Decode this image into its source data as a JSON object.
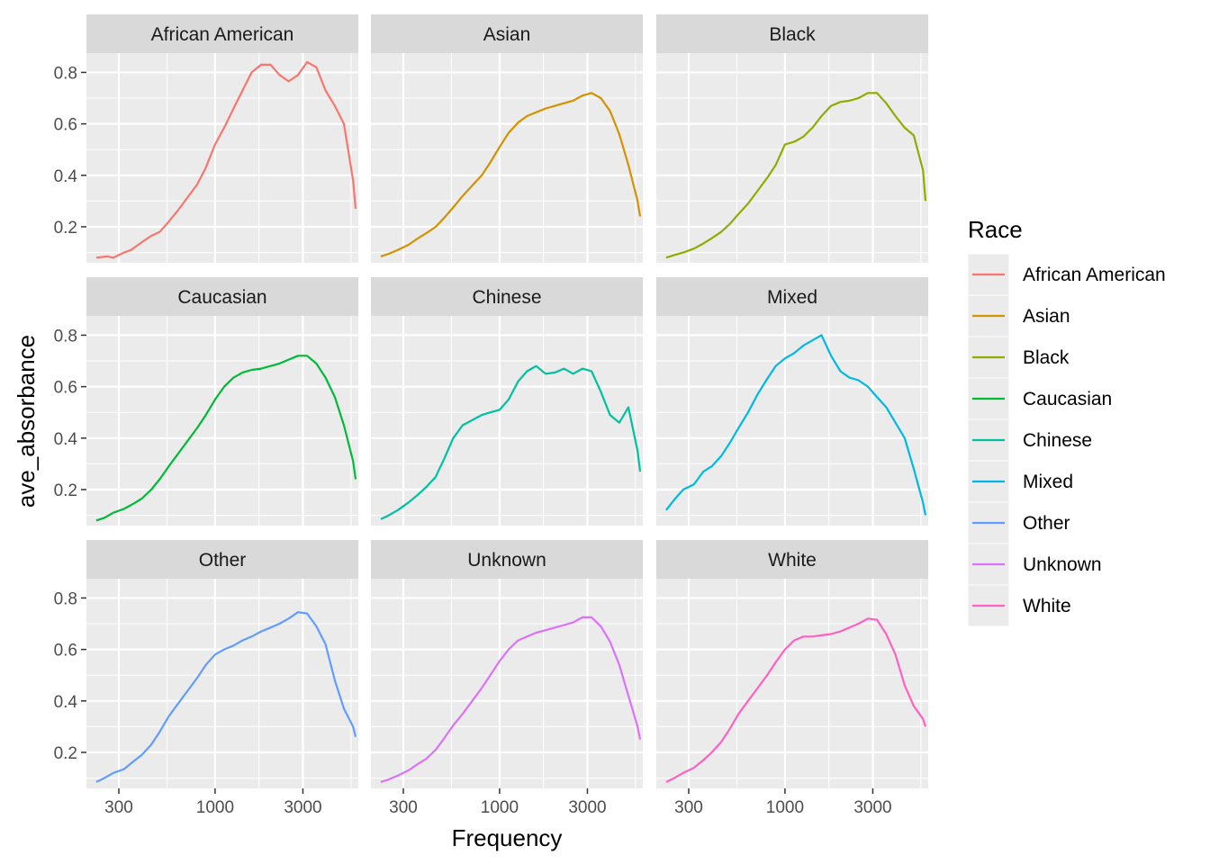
{
  "chart_data": {
    "type": "line",
    "facet_layout": "3x3",
    "xlabel": "Frequency",
    "ylabel": "ave_absorbance",
    "x_scale": "log10",
    "x_ticks": [
      300,
      1000,
      3000
    ],
    "x_tick_labels": [
      "300",
      "1000",
      "3000"
    ],
    "xlim": [
      200,
      6000
    ],
    "y_ticks": [
      0.2,
      0.4,
      0.6,
      0.8
    ],
    "y_tick_labels": [
      "0.2",
      "0.4",
      "0.6",
      "0.8"
    ],
    "ylim": [
      0.06,
      0.875
    ],
    "grid": true,
    "legend_title": "Race",
    "legend_position": "right",
    "facets": [
      {
        "title": "African American",
        "color": "#F8766D",
        "x": [
          226,
          260,
          280,
          320,
          350,
          400,
          450,
          500,
          560,
          630,
          710,
          800,
          890,
          1000,
          1120,
          1260,
          1410,
          1580,
          1780,
          2000,
          2240,
          2510,
          2820,
          3160,
          3550,
          3980,
          4470,
          5010,
          5620,
          5800
        ],
        "y": [
          0.08,
          0.085,
          0.08,
          0.1,
          0.11,
          0.14,
          0.165,
          0.18,
          0.22,
          0.265,
          0.315,
          0.365,
          0.43,
          0.52,
          0.585,
          0.66,
          0.73,
          0.8,
          0.83,
          0.83,
          0.79,
          0.765,
          0.79,
          0.84,
          0.82,
          0.73,
          0.67,
          0.6,
          0.38,
          0.27
        ]
      },
      {
        "title": "Asian",
        "color": "#D39200",
        "x": [
          226,
          250,
          280,
          320,
          360,
          400,
          450,
          500,
          560,
          630,
          710,
          800,
          890,
          1000,
          1120,
          1260,
          1410,
          1580,
          1780,
          2000,
          2240,
          2510,
          2820,
          3160,
          3550,
          3980,
          4470,
          5010,
          5620,
          5800
        ],
        "y": [
          0.085,
          0.095,
          0.11,
          0.13,
          0.155,
          0.175,
          0.2,
          0.235,
          0.275,
          0.32,
          0.36,
          0.4,
          0.45,
          0.51,
          0.565,
          0.605,
          0.63,
          0.645,
          0.66,
          0.67,
          0.68,
          0.69,
          0.71,
          0.72,
          0.7,
          0.65,
          0.56,
          0.44,
          0.3,
          0.24
        ]
      },
      {
        "title": "Black",
        "color": "#93AA00",
        "x": [
          226,
          250,
          280,
          320,
          360,
          400,
          450,
          500,
          560,
          630,
          710,
          800,
          890,
          1000,
          1120,
          1260,
          1410,
          1580,
          1780,
          2000,
          2240,
          2510,
          2820,
          3160,
          3550,
          3980,
          4470,
          5010,
          5620,
          5800
        ],
        "y": [
          0.08,
          0.09,
          0.1,
          0.115,
          0.135,
          0.155,
          0.18,
          0.21,
          0.25,
          0.29,
          0.34,
          0.39,
          0.44,
          0.52,
          0.53,
          0.55,
          0.585,
          0.63,
          0.67,
          0.685,
          0.69,
          0.7,
          0.72,
          0.72,
          0.68,
          0.63,
          0.585,
          0.555,
          0.42,
          0.3
        ]
      },
      {
        "title": "Caucasian",
        "color": "#00BA38",
        "x": [
          226,
          250,
          280,
          320,
          360,
          400,
          450,
          500,
          560,
          630,
          710,
          800,
          890,
          1000,
          1120,
          1260,
          1410,
          1580,
          1780,
          2000,
          2240,
          2510,
          2820,
          3160,
          3550,
          3980,
          4470,
          5010,
          5620,
          5800
        ],
        "y": [
          0.08,
          0.09,
          0.11,
          0.125,
          0.145,
          0.165,
          0.2,
          0.24,
          0.29,
          0.34,
          0.39,
          0.44,
          0.49,
          0.55,
          0.6,
          0.635,
          0.655,
          0.665,
          0.67,
          0.68,
          0.69,
          0.705,
          0.72,
          0.72,
          0.69,
          0.635,
          0.56,
          0.45,
          0.31,
          0.24
        ]
      },
      {
        "title": "Chinese",
        "color": "#00C19F",
        "x": [
          226,
          250,
          280,
          320,
          360,
          400,
          450,
          500,
          560,
          630,
          710,
          800,
          890,
          1000,
          1120,
          1260,
          1410,
          1580,
          1780,
          2000,
          2240,
          2510,
          2820,
          3160,
          3550,
          3980,
          4470,
          5010,
          5620,
          5800
        ],
        "y": [
          0.085,
          0.1,
          0.12,
          0.15,
          0.18,
          0.21,
          0.25,
          0.32,
          0.4,
          0.45,
          0.47,
          0.49,
          0.5,
          0.51,
          0.55,
          0.62,
          0.66,
          0.68,
          0.65,
          0.655,
          0.67,
          0.65,
          0.67,
          0.66,
          0.58,
          0.49,
          0.46,
          0.52,
          0.35,
          0.27
        ]
      },
      {
        "title": "Mixed",
        "color": "#00B9E3",
        "x": [
          226,
          250,
          280,
          320,
          360,
          400,
          450,
          500,
          560,
          630,
          710,
          800,
          890,
          1000,
          1120,
          1260,
          1410,
          1580,
          1780,
          2000,
          2240,
          2510,
          2820,
          3160,
          3550,
          3980,
          4470,
          5010,
          5620,
          5800
        ],
        "y": [
          0.12,
          0.16,
          0.2,
          0.22,
          0.27,
          0.29,
          0.33,
          0.38,
          0.44,
          0.5,
          0.57,
          0.63,
          0.68,
          0.71,
          0.73,
          0.76,
          0.78,
          0.8,
          0.72,
          0.66,
          0.635,
          0.625,
          0.6,
          0.56,
          0.52,
          0.46,
          0.4,
          0.28,
          0.15,
          0.1
        ]
      },
      {
        "title": "Other",
        "color": "#619CFF",
        "x": [
          226,
          250,
          280,
          320,
          360,
          400,
          450,
          500,
          560,
          630,
          710,
          800,
          890,
          1000,
          1120,
          1260,
          1410,
          1580,
          1780,
          2000,
          2240,
          2510,
          2820,
          3160,
          3550,
          3980,
          4470,
          5010,
          5620,
          5800
        ],
        "y": [
          0.085,
          0.1,
          0.12,
          0.135,
          0.165,
          0.19,
          0.23,
          0.28,
          0.34,
          0.39,
          0.44,
          0.49,
          0.54,
          0.58,
          0.6,
          0.615,
          0.635,
          0.65,
          0.67,
          0.685,
          0.7,
          0.72,
          0.745,
          0.74,
          0.69,
          0.62,
          0.48,
          0.37,
          0.3,
          0.26
        ]
      },
      {
        "title": "Unknown",
        "color": "#DB72FB",
        "x": [
          226,
          250,
          280,
          320,
          360,
          400,
          450,
          500,
          560,
          630,
          710,
          800,
          890,
          1000,
          1120,
          1260,
          1410,
          1580,
          1780,
          2000,
          2240,
          2510,
          2820,
          3160,
          3550,
          3980,
          4470,
          5010,
          5620,
          5800
        ],
        "y": [
          0.085,
          0.095,
          0.11,
          0.13,
          0.155,
          0.175,
          0.21,
          0.255,
          0.305,
          0.35,
          0.4,
          0.45,
          0.5,
          0.555,
          0.6,
          0.635,
          0.65,
          0.665,
          0.675,
          0.685,
          0.695,
          0.705,
          0.725,
          0.725,
          0.69,
          0.63,
          0.54,
          0.42,
          0.3,
          0.25
        ]
      },
      {
        "title": "White",
        "color": "#FF61C3",
        "x": [
          226,
          250,
          280,
          320,
          360,
          400,
          450,
          500,
          560,
          630,
          710,
          800,
          890,
          1000,
          1120,
          1260,
          1410,
          1580,
          1780,
          2000,
          2240,
          2510,
          2820,
          3160,
          3550,
          3980,
          4470,
          5010,
          5620,
          5800
        ],
        "y": [
          0.085,
          0.1,
          0.12,
          0.14,
          0.17,
          0.2,
          0.24,
          0.29,
          0.35,
          0.4,
          0.45,
          0.5,
          0.55,
          0.6,
          0.635,
          0.65,
          0.65,
          0.655,
          0.66,
          0.67,
          0.685,
          0.7,
          0.72,
          0.715,
          0.66,
          0.58,
          0.46,
          0.38,
          0.33,
          0.3
        ]
      }
    ]
  }
}
